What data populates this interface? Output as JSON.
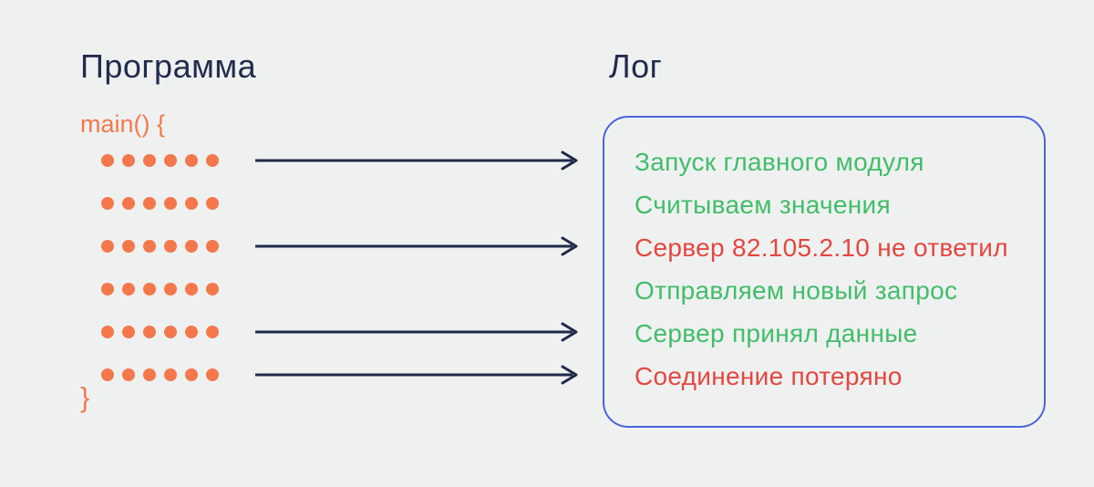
{
  "colors": {
    "background": "#eff1f1",
    "heading": "#212c4c",
    "code": "#f4784c",
    "arrow": "#1f2a48",
    "log_border": "#4b63d8",
    "success": "#42bd69",
    "error": "#e4473f"
  },
  "headings": {
    "program": "Программа",
    "log": "Лог"
  },
  "code": {
    "open": "main() {",
    "close": "}",
    "dot_rows": 6,
    "dots_per_row": 6
  },
  "arrows": {
    "rows_with_arrows": [
      0,
      2,
      4,
      5
    ]
  },
  "log": {
    "entries": [
      {
        "text": "Запуск главного модуля",
        "status": "success"
      },
      {
        "text": "Считываем значения",
        "status": "success"
      },
      {
        "text": "Сервер 82.105.2.10 не ответил",
        "status": "error"
      },
      {
        "text": "Отправляем новый запрос",
        "status": "success"
      },
      {
        "text": "Сервер принял данные",
        "status": "success"
      },
      {
        "text": "Соединение потеряно",
        "status": "error"
      }
    ]
  }
}
